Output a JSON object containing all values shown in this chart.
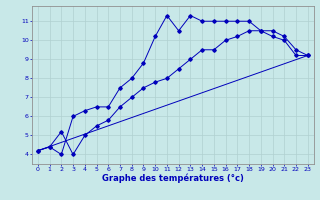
{
  "xlabel": "Graphe des températures (°c)",
  "background_color": "#c8e8e8",
  "grid_color": "#b0d0d0",
  "line_color": "#0000bb",
  "xlim": [
    -0.5,
    23.5
  ],
  "ylim": [
    3.5,
    11.8
  ],
  "xticks": [
    0,
    1,
    2,
    3,
    4,
    5,
    6,
    7,
    8,
    9,
    10,
    11,
    12,
    13,
    14,
    15,
    16,
    17,
    18,
    19,
    20,
    21,
    22,
    23
  ],
  "yticks": [
    4,
    5,
    6,
    7,
    8,
    9,
    10,
    11
  ],
  "curve1_x": [
    0,
    1,
    2,
    3,
    4,
    5,
    6,
    7,
    8,
    9,
    10,
    11,
    12,
    13,
    14,
    15,
    16,
    17,
    18,
    19,
    20,
    21,
    22,
    23
  ],
  "curve1_y": [
    4.2,
    4.4,
    4.0,
    6.0,
    6.3,
    6.5,
    6.5,
    7.5,
    8.0,
    8.8,
    10.2,
    11.3,
    10.5,
    11.3,
    11.0,
    11.0,
    11.0,
    11.0,
    11.0,
    10.5,
    10.2,
    10.0,
    9.2,
    9.2
  ],
  "curve2_x": [
    0,
    1,
    2,
    3,
    4,
    5,
    6,
    7,
    8,
    9,
    10,
    11,
    12,
    13,
    14,
    15,
    16,
    17,
    18,
    19,
    20,
    21,
    22,
    23
  ],
  "curve2_y": [
    4.2,
    4.4,
    5.2,
    4.0,
    5.0,
    5.5,
    5.8,
    6.5,
    7.0,
    7.5,
    7.8,
    8.0,
    8.5,
    9.0,
    9.5,
    9.5,
    10.0,
    10.2,
    10.5,
    10.5,
    10.5,
    10.2,
    9.5,
    9.2
  ],
  "curve3_x": [
    0,
    23
  ],
  "curve3_y": [
    4.2,
    9.2
  ]
}
